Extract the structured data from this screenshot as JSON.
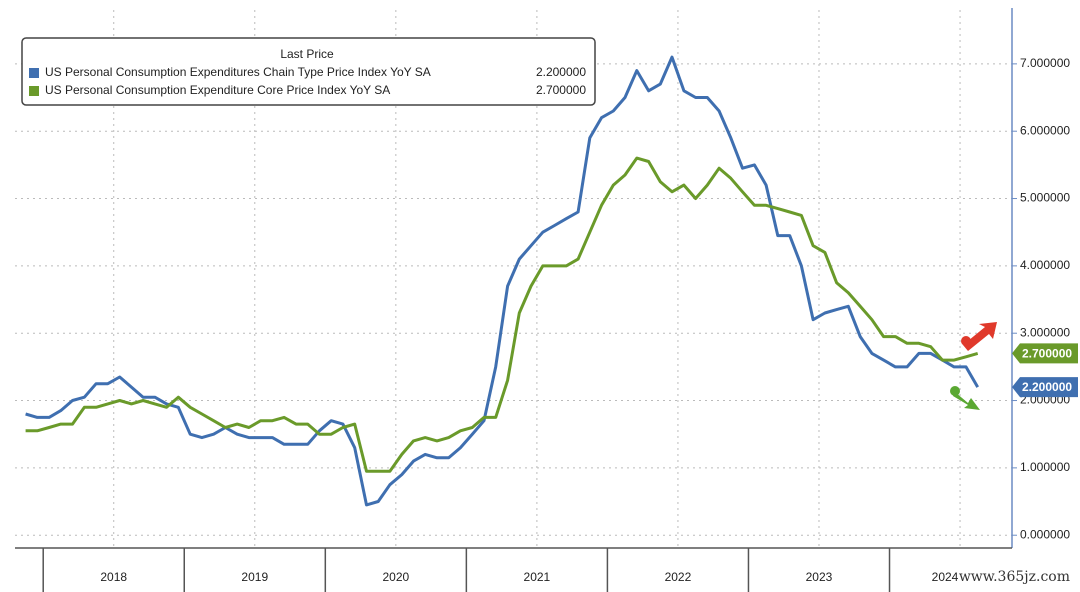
{
  "chart_data": {
    "type": "line",
    "legend_title": "Last Price",
    "legend_position": "top-left",
    "grid": true,
    "watermark": "www.365jz.com",
    "x": [
      2017.875,
      2017.958,
      2018.042,
      2018.125,
      2018.208,
      2018.292,
      2018.375,
      2018.458,
      2018.542,
      2018.625,
      2018.708,
      2018.792,
      2018.875,
      2018.958,
      2019.042,
      2019.125,
      2019.208,
      2019.292,
      2019.375,
      2019.458,
      2019.542,
      2019.625,
      2019.708,
      2019.792,
      2019.875,
      2019.958,
      2020.042,
      2020.125,
      2020.208,
      2020.292,
      2020.375,
      2020.458,
      2020.542,
      2020.625,
      2020.708,
      2020.792,
      2020.875,
      2020.958,
      2021.042,
      2021.125,
      2021.208,
      2021.292,
      2021.375,
      2021.458,
      2021.542,
      2021.625,
      2021.708,
      2021.792,
      2021.875,
      2021.958,
      2022.042,
      2022.125,
      2022.208,
      2022.292,
      2022.375,
      2022.458,
      2022.542,
      2022.625,
      2022.708,
      2022.792,
      2022.875,
      2022.958,
      2023.042,
      2023.125,
      2023.208,
      2023.292,
      2023.375,
      2023.458,
      2023.542,
      2023.625,
      2023.708,
      2023.792,
      2023.875,
      2023.958,
      2024.042,
      2024.125,
      2024.208,
      2024.292,
      2024.375,
      2024.458,
      2024.542,
      2024.625
    ],
    "series": [
      {
        "name": "US Personal Consumption Expenditures Chain Type Price Index YoY SA",
        "color": "#3f6fb0",
        "last_value_label": "2.200000",
        "values": [
          1.8,
          1.75,
          1.75,
          1.85,
          2.0,
          2.05,
          2.25,
          2.25,
          2.35,
          2.2,
          2.05,
          2.05,
          1.95,
          1.9,
          1.5,
          1.45,
          1.5,
          1.6,
          1.5,
          1.45,
          1.45,
          1.45,
          1.35,
          1.35,
          1.35,
          1.55,
          1.7,
          1.65,
          1.3,
          0.45,
          0.5,
          0.75,
          0.9,
          1.1,
          1.2,
          1.15,
          1.15,
          1.3,
          1.5,
          1.7,
          2.5,
          3.7,
          4.1,
          4.3,
          4.5,
          4.6,
          4.7,
          4.8,
          5.9,
          6.2,
          6.3,
          6.5,
          6.9,
          6.6,
          6.7,
          7.1,
          6.6,
          6.5,
          6.5,
          6.3,
          5.9,
          5.45,
          5.5,
          5.2,
          4.45,
          4.45,
          4.0,
          3.2,
          3.3,
          3.35,
          3.4,
          2.95,
          2.7,
          2.6,
          2.5,
          2.5,
          2.7,
          2.7,
          2.6,
          2.5,
          2.5,
          2.2
        ]
      },
      {
        "name": "US Personal Consumption Expenditure Core Price Index YoY SA",
        "color": "#6a9a2a",
        "last_value_label": "2.700000",
        "values": [
          1.55,
          1.55,
          1.6,
          1.65,
          1.65,
          1.9,
          1.9,
          1.95,
          2.0,
          1.95,
          2.0,
          1.95,
          1.9,
          2.05,
          1.9,
          1.8,
          1.7,
          1.6,
          1.65,
          1.6,
          1.7,
          1.7,
          1.75,
          1.65,
          1.65,
          1.5,
          1.5,
          1.6,
          1.65,
          0.95,
          0.95,
          0.95,
          1.2,
          1.4,
          1.45,
          1.4,
          1.45,
          1.55,
          1.6,
          1.75,
          1.75,
          2.3,
          3.3,
          3.7,
          4.0,
          4.0,
          4.0,
          4.1,
          4.5,
          4.9,
          5.2,
          5.35,
          5.6,
          5.55,
          5.25,
          5.1,
          5.2,
          5.0,
          5.2,
          5.45,
          5.3,
          5.1,
          4.9,
          4.9,
          4.85,
          4.8,
          4.75,
          4.3,
          4.2,
          3.75,
          3.6,
          3.4,
          3.2,
          2.95,
          2.95,
          2.85,
          2.85,
          2.8,
          2.6,
          2.6,
          2.65,
          2.7
        ]
      }
    ],
    "xlim": [
      2017.8,
      2024.84
    ],
    "xticks": [
      2018,
      2019,
      2020,
      2021,
      2022,
      2023,
      2024
    ],
    "ylim": [
      -0.19,
      7.8
    ],
    "yticks": [
      {
        "value": 0,
        "label": "0.000000"
      },
      {
        "value": 1,
        "label": "1.000000"
      },
      {
        "value": 2,
        "label": "2.000000"
      },
      {
        "value": 3,
        "label": "3.000000"
      },
      {
        "value": 4,
        "label": "4.000000"
      },
      {
        "value": 5,
        "label": "5.000000"
      },
      {
        "value": 6,
        "label": "6.000000"
      },
      {
        "value": 7,
        "label": "7.000000"
      }
    ]
  }
}
